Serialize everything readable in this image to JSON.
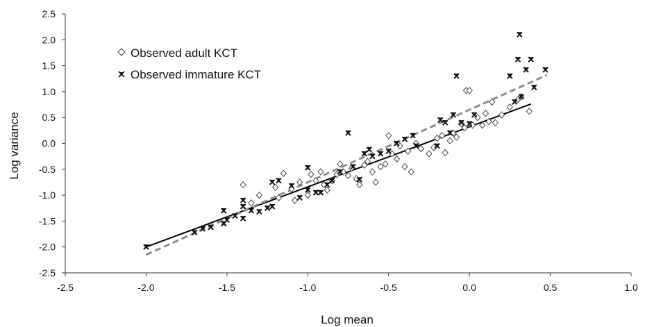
{
  "chart_data": {
    "type": "scatter",
    "xlabel": "Log mean",
    "ylabel": "Log variance",
    "xlim": [
      -2.5,
      1.0
    ],
    "ylim": [
      -2.5,
      2.5
    ],
    "x_ticks": [
      "-2.5",
      "-2.0",
      "-1.5",
      "-1.0",
      "-0.5",
      "0.0",
      "0.5",
      "1.0"
    ],
    "y_ticks": [
      "2.5",
      "2.0",
      "1.5",
      "1.0",
      "0.5",
      "0.0",
      "-0.5",
      "-1.0",
      "-1.5",
      "-2.0",
      "-2.5"
    ],
    "grid": false,
    "legend_position": "top-left",
    "series": [
      {
        "name": "Observed adult KCT",
        "marker": "diamond-open",
        "points": [
          [
            -1.4,
            -0.8
          ],
          [
            -1.35,
            -1.15
          ],
          [
            -1.3,
            -1.0
          ],
          [
            -1.2,
            -0.85
          ],
          [
            -1.18,
            -1.05
          ],
          [
            -1.15,
            -0.58
          ],
          [
            -1.1,
            -0.88
          ],
          [
            -1.08,
            -1.1
          ],
          [
            -1.05,
            -0.75
          ],
          [
            -1.0,
            -1.0
          ],
          [
            -0.98,
            -0.6
          ],
          [
            -0.95,
            -0.72
          ],
          [
            -0.92,
            -0.55
          ],
          [
            -0.9,
            -0.8
          ],
          [
            -0.88,
            -0.9
          ],
          [
            -0.85,
            -0.72
          ],
          [
            -0.82,
            -0.6
          ],
          [
            -0.8,
            -0.4
          ],
          [
            -0.78,
            -0.55
          ],
          [
            -0.75,
            -0.62
          ],
          [
            -0.73,
            -0.48
          ],
          [
            -0.7,
            -0.68
          ],
          [
            -0.68,
            -0.8
          ],
          [
            -0.65,
            -0.42
          ],
          [
            -0.63,
            -0.35
          ],
          [
            -0.6,
            -0.55
          ],
          [
            -0.58,
            -0.75
          ],
          [
            -0.55,
            -0.45
          ],
          [
            -0.52,
            -0.4
          ],
          [
            -0.5,
            0.15
          ],
          [
            -0.48,
            -0.2
          ],
          [
            -0.45,
            -0.3
          ],
          [
            -0.43,
            -0.05
          ],
          [
            -0.4,
            -0.45
          ],
          [
            -0.38,
            -0.15
          ],
          [
            -0.36,
            -0.55
          ],
          [
            -0.33,
            0.0
          ],
          [
            -0.3,
            -0.1
          ],
          [
            -0.25,
            -0.2
          ],
          [
            -0.22,
            -0.08
          ],
          [
            -0.2,
            0.1
          ],
          [
            -0.17,
            0.15
          ],
          [
            -0.15,
            -0.18
          ],
          [
            -0.12,
            0.05
          ],
          [
            -0.1,
            0.2
          ],
          [
            -0.08,
            0.12
          ],
          [
            -0.05,
            0.38
          ],
          [
            -0.03,
            0.3
          ],
          [
            -0.02,
            1.02
          ],
          [
            0.0,
            1.02
          ],
          [
            0.02,
            0.35
          ],
          [
            0.05,
            0.5
          ],
          [
            0.08,
            0.35
          ],
          [
            0.1,
            0.58
          ],
          [
            0.12,
            0.42
          ],
          [
            0.14,
            0.8
          ],
          [
            0.16,
            0.4
          ],
          [
            0.2,
            0.55
          ],
          [
            0.25,
            0.7
          ],
          [
            0.3,
            0.85
          ],
          [
            0.32,
            0.9
          ],
          [
            0.37,
            0.62
          ]
        ]
      },
      {
        "name": "Observed immature KCT",
        "marker": "cross-dark",
        "points": [
          [
            -2.0,
            -2.0
          ],
          [
            -1.7,
            -1.72
          ],
          [
            -1.65,
            -1.65
          ],
          [
            -1.6,
            -1.62
          ],
          [
            -1.52,
            -1.55
          ],
          [
            -1.5,
            -1.48
          ],
          [
            -1.52,
            -1.3
          ],
          [
            -1.45,
            -1.4
          ],
          [
            -1.4,
            -1.1
          ],
          [
            -1.4,
            -1.22
          ],
          [
            -1.4,
            -1.45
          ],
          [
            -1.35,
            -1.3
          ],
          [
            -1.3,
            -1.32
          ],
          [
            -1.25,
            -1.25
          ],
          [
            -1.22,
            -1.22
          ],
          [
            -1.22,
            -0.75
          ],
          [
            -1.18,
            -0.72
          ],
          [
            -1.1,
            -0.82
          ],
          [
            -1.05,
            -1.05
          ],
          [
            -1.0,
            -0.9
          ],
          [
            -1.0,
            -0.47
          ],
          [
            -0.95,
            -0.95
          ],
          [
            -0.92,
            -0.95
          ],
          [
            -0.88,
            -0.8
          ],
          [
            -0.85,
            -0.72
          ],
          [
            -0.8,
            -0.55
          ],
          [
            -0.75,
            0.2
          ],
          [
            -0.72,
            -0.45
          ],
          [
            -0.68,
            -0.7
          ],
          [
            -0.65,
            -0.2
          ],
          [
            -0.62,
            -0.12
          ],
          [
            -0.6,
            -0.25
          ],
          [
            -0.55,
            -0.2
          ],
          [
            -0.5,
            -0.15
          ],
          [
            -0.45,
            0.0
          ],
          [
            -0.4,
            0.08
          ],
          [
            -0.35,
            0.15
          ],
          [
            -0.33,
            -0.05
          ],
          [
            -0.2,
            -0.05
          ],
          [
            -0.18,
            0.45
          ],
          [
            -0.15,
            0.4
          ],
          [
            -0.12,
            0.2
          ],
          [
            -0.1,
            0.55
          ],
          [
            -0.08,
            1.3
          ],
          [
            -0.05,
            0.4
          ],
          [
            0.0,
            0.38
          ],
          [
            0.03,
            0.55
          ],
          [
            0.25,
            1.3
          ],
          [
            0.28,
            0.8
          ],
          [
            0.3,
            1.62
          ],
          [
            0.31,
            2.1
          ],
          [
            0.32,
            0.9
          ],
          [
            0.35,
            1.42
          ],
          [
            0.38,
            1.62
          ],
          [
            0.4,
            1.08
          ],
          [
            0.47,
            1.42
          ]
        ]
      }
    ],
    "fits": [
      {
        "style": "solid",
        "color": "#000000",
        "x": [
          -2.0,
          0.38
        ],
        "y": [
          -2.0,
          0.76
        ]
      },
      {
        "style": "dashed",
        "color": "#8c8c8c",
        "x": [
          -2.0,
          0.48
        ],
        "y": [
          -2.15,
          1.32
        ]
      }
    ],
    "colors": {
      "adult_marker": "#444444",
      "immature_marker": "#111111",
      "axis": "#333333"
    }
  }
}
